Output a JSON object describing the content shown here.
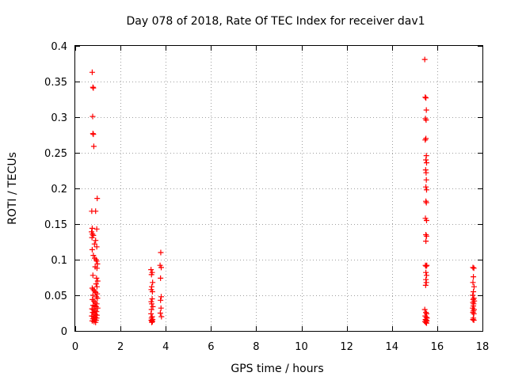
{
  "chart_data": {
    "type": "scatter",
    "title": "Day 078 of 2018, Rate Of TEC Index for receiver dav1",
    "xlabel": "GPS time / hours",
    "ylabel": "ROTI / TECUs",
    "xlim": [
      0,
      18
    ],
    "ylim": [
      0,
      0.4
    ],
    "xticks": [
      0,
      2,
      4,
      6,
      8,
      10,
      12,
      14,
      16,
      18
    ],
    "yticks": [
      0,
      0.05,
      0.1,
      0.15,
      0.2,
      0.25,
      0.3,
      0.35,
      0.4
    ],
    "xtick_labels": [
      "0",
      "2",
      "4",
      "6",
      "8",
      "10",
      "12",
      "14",
      "16",
      "18"
    ],
    "ytick_labels": [
      "0",
      "0.05",
      "0.1",
      "0.15",
      "0.2",
      "0.25",
      "0.3",
      "0.35",
      "0.4"
    ],
    "grid": true,
    "marker": "+",
    "color": "#ff0000",
    "series": [
      {
        "name": "dav1",
        "points": [
          [
            0.75,
            0.363
          ],
          [
            0.78,
            0.342
          ],
          [
            0.8,
            0.341
          ],
          [
            0.77,
            0.301
          ],
          [
            0.78,
            0.277
          ],
          [
            0.8,
            0.276
          ],
          [
            0.82,
            0.259
          ],
          [
            0.97,
            0.186
          ],
          [
            0.73,
            0.168
          ],
          [
            0.9,
            0.168
          ],
          [
            0.75,
            0.144
          ],
          [
            0.95,
            0.143
          ],
          [
            0.72,
            0.139
          ],
          [
            0.76,
            0.136
          ],
          [
            0.8,
            0.134
          ],
          [
            0.74,
            0.131
          ],
          [
            0.9,
            0.127
          ],
          [
            0.85,
            0.122
          ],
          [
            0.95,
            0.118
          ],
          [
            0.75,
            0.114
          ],
          [
            0.8,
            0.106
          ],
          [
            0.86,
            0.102
          ],
          [
            0.92,
            0.1
          ],
          [
            0.95,
            0.098
          ],
          [
            0.98,
            0.094
          ],
          [
            0.88,
            0.09
          ],
          [
            0.96,
            0.088
          ],
          [
            0.78,
            0.078
          ],
          [
            0.94,
            0.074
          ],
          [
            0.99,
            0.07
          ],
          [
            0.92,
            0.066
          ],
          [
            0.96,
            0.062
          ],
          [
            0.75,
            0.06
          ],
          [
            0.8,
            0.058
          ],
          [
            0.85,
            0.056
          ],
          [
            0.9,
            0.054
          ],
          [
            0.97,
            0.052
          ],
          [
            0.78,
            0.05
          ],
          [
            0.93,
            0.048
          ],
          [
            0.98,
            0.046
          ],
          [
            0.76,
            0.044
          ],
          [
            0.82,
            0.042
          ],
          [
            0.88,
            0.04
          ],
          [
            0.95,
            0.038
          ],
          [
            0.79,
            0.036
          ],
          [
            0.86,
            0.035
          ],
          [
            0.92,
            0.034
          ],
          [
            0.99,
            0.032
          ],
          [
            0.74,
            0.031
          ],
          [
            0.8,
            0.03
          ],
          [
            0.87,
            0.028
          ],
          [
            0.94,
            0.027
          ],
          [
            0.77,
            0.026
          ],
          [
            0.84,
            0.025
          ],
          [
            0.9,
            0.023
          ],
          [
            0.96,
            0.022
          ],
          [
            0.73,
            0.021
          ],
          [
            0.81,
            0.02
          ],
          [
            0.88,
            0.019
          ],
          [
            0.95,
            0.018
          ],
          [
            0.78,
            0.017
          ],
          [
            0.85,
            0.016
          ],
          [
            0.92,
            0.015
          ],
          [
            0.75,
            0.014
          ],
          [
            0.83,
            0.013
          ],
          [
            0.9,
            0.012
          ],
          [
            3.35,
            0.086
          ],
          [
            3.4,
            0.082
          ],
          [
            3.37,
            0.079
          ],
          [
            3.42,
            0.068
          ],
          [
            3.38,
            0.062
          ],
          [
            3.36,
            0.058
          ],
          [
            3.41,
            0.055
          ],
          [
            3.4,
            0.045
          ],
          [
            3.36,
            0.041
          ],
          [
            3.38,
            0.038
          ],
          [
            3.43,
            0.034
          ],
          [
            3.37,
            0.03
          ],
          [
            3.35,
            0.024
          ],
          [
            3.4,
            0.02
          ],
          [
            3.37,
            0.018
          ],
          [
            3.42,
            0.016
          ],
          [
            3.36,
            0.015
          ],
          [
            3.39,
            0.014
          ],
          [
            3.41,
            0.013
          ],
          [
            3.38,
            0.012
          ],
          [
            3.78,
            0.11
          ],
          [
            3.75,
            0.092
          ],
          [
            3.8,
            0.089
          ],
          [
            3.77,
            0.074
          ],
          [
            3.8,
            0.048
          ],
          [
            3.77,
            0.043
          ],
          [
            3.79,
            0.032
          ],
          [
            3.76,
            0.025
          ],
          [
            3.81,
            0.02
          ],
          [
            15.45,
            0.381
          ],
          [
            15.47,
            0.328
          ],
          [
            15.5,
            0.327
          ],
          [
            15.52,
            0.31
          ],
          [
            15.48,
            0.298
          ],
          [
            15.51,
            0.296
          ],
          [
            15.5,
            0.27
          ],
          [
            15.47,
            0.268
          ],
          [
            15.52,
            0.246
          ],
          [
            15.5,
            0.24
          ],
          [
            15.53,
            0.236
          ],
          [
            15.49,
            0.226
          ],
          [
            15.51,
            0.222
          ],
          [
            15.52,
            0.212
          ],
          [
            15.5,
            0.202
          ],
          [
            15.53,
            0.198
          ],
          [
            15.5,
            0.182
          ],
          [
            15.52,
            0.18
          ],
          [
            15.48,
            0.158
          ],
          [
            15.53,
            0.155
          ],
          [
            15.5,
            0.135
          ],
          [
            15.53,
            0.133
          ],
          [
            15.5,
            0.126
          ],
          [
            15.48,
            0.092
          ],
          [
            15.51,
            0.091
          ],
          [
            15.54,
            0.092
          ],
          [
            15.5,
            0.082
          ],
          [
            15.53,
            0.078
          ],
          [
            15.5,
            0.072
          ],
          [
            15.52,
            0.068
          ],
          [
            15.49,
            0.064
          ],
          [
            15.45,
            0.03
          ],
          [
            15.5,
            0.026
          ],
          [
            15.53,
            0.024
          ],
          [
            15.47,
            0.021
          ],
          [
            15.52,
            0.019
          ],
          [
            15.55,
            0.018
          ],
          [
            15.48,
            0.016
          ],
          [
            15.51,
            0.015
          ],
          [
            15.54,
            0.014
          ],
          [
            15.46,
            0.013
          ],
          [
            15.5,
            0.012
          ],
          [
            15.53,
            0.011
          ],
          [
            17.58,
            0.089
          ],
          [
            17.62,
            0.088
          ],
          [
            17.6,
            0.076
          ],
          [
            17.58,
            0.068
          ],
          [
            17.63,
            0.062
          ],
          [
            17.6,
            0.055
          ],
          [
            17.57,
            0.05
          ],
          [
            17.62,
            0.046
          ],
          [
            17.59,
            0.044
          ],
          [
            17.64,
            0.042
          ],
          [
            17.58,
            0.04
          ],
          [
            17.61,
            0.038
          ],
          [
            17.6,
            0.035
          ],
          [
            17.57,
            0.032
          ],
          [
            17.63,
            0.03
          ],
          [
            17.6,
            0.028
          ],
          [
            17.58,
            0.026
          ],
          [
            17.62,
            0.024
          ],
          [
            17.6,
            0.018
          ],
          [
            17.58,
            0.016
          ],
          [
            17.62,
            0.015
          ]
        ]
      }
    ]
  }
}
